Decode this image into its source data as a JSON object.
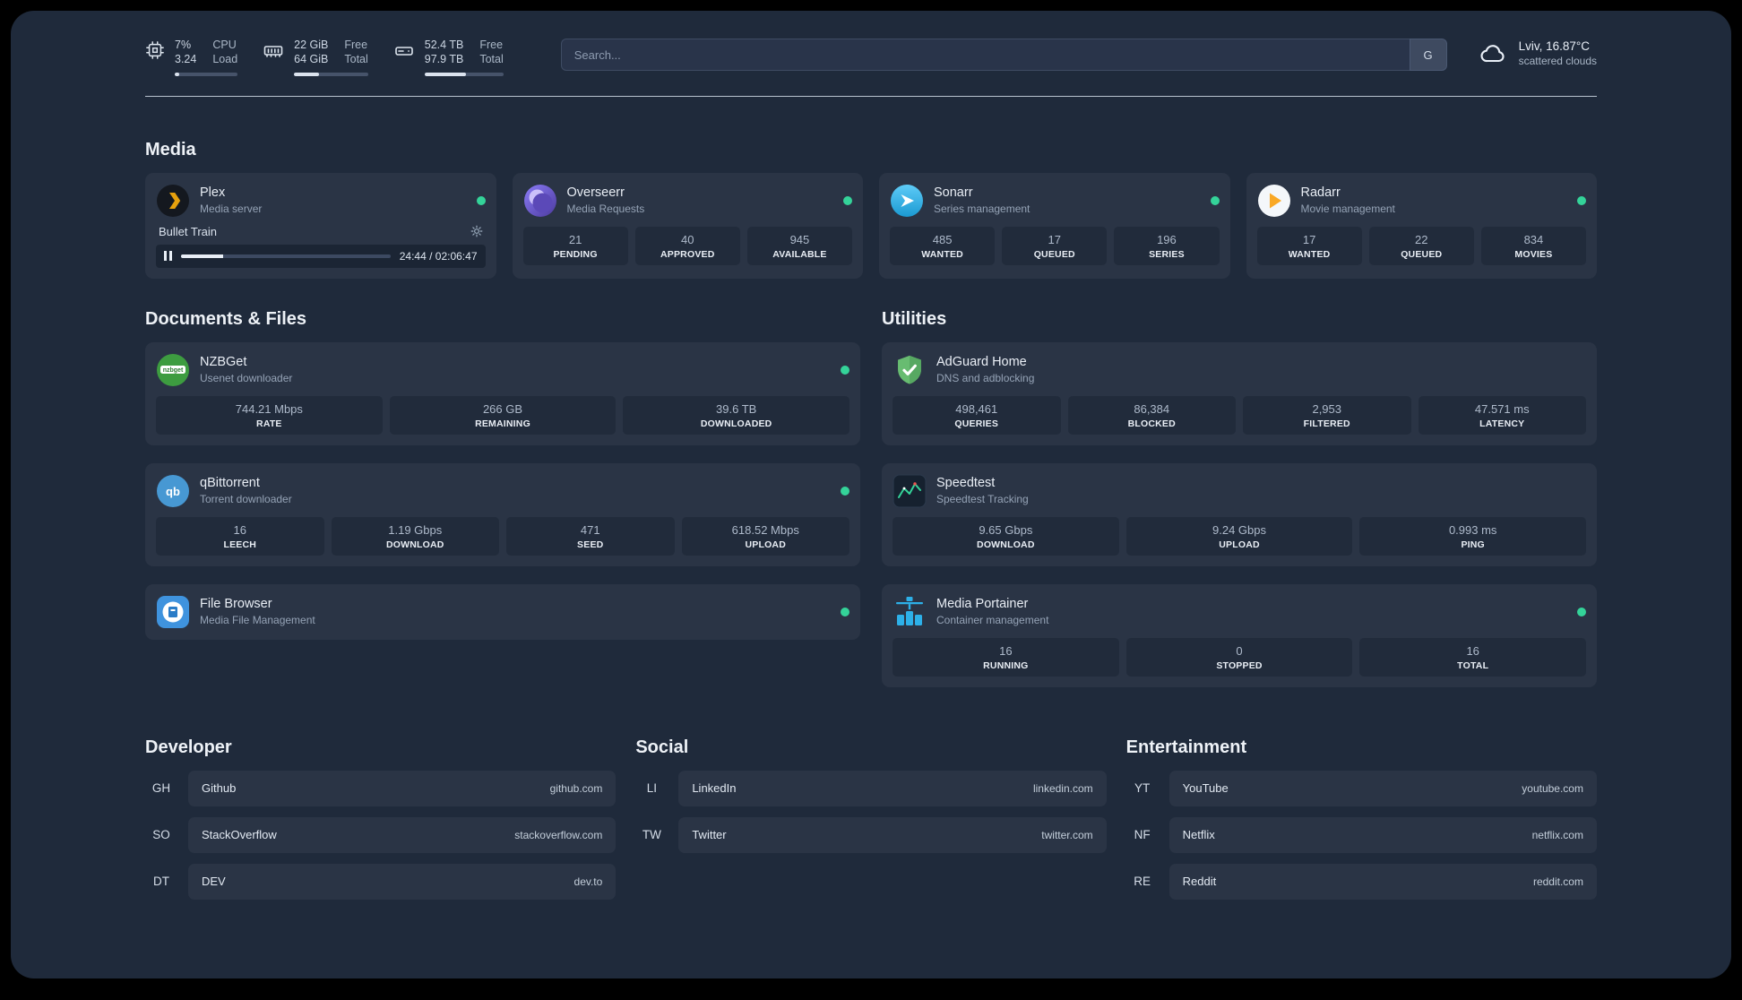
{
  "theme": {
    "status_green": "#34d399",
    "accent_plex": "#e5a00d",
    "accent_sonarr": "#35c5f4",
    "accent_radarr": "#f9a825",
    "accent_nzbget": "#3d9c40",
    "accent_qbittorrent": "#4798d3",
    "accent_adguard": "#68bc71",
    "accent_portainer": "#2db0e8"
  },
  "topbar": {
    "cpu": {
      "icon": "cpu-chip-icon",
      "value_top": "7%",
      "value_bottom": "3.24",
      "label_top": "CPU",
      "label_bottom": "Load",
      "percent": 7
    },
    "memory": {
      "icon": "ram-stick-icon",
      "value_top": "22 GiB",
      "value_bottom": "64 GiB",
      "label_top": "Free",
      "label_bottom": "Total",
      "percent": 34
    },
    "disk": {
      "icon": "hard-drive-icon",
      "value_top": "52.4 TB",
      "value_bottom": "97.9 TB",
      "label_top": "Free",
      "label_bottom": "Total",
      "percent": 53
    },
    "search": {
      "placeholder": "Search...",
      "button_label": "G"
    },
    "weather": {
      "icon": "cloud-icon",
      "location": "Lviv, 16.87°C",
      "condition": "scattered clouds"
    }
  },
  "sections": {
    "media": {
      "title": "Media",
      "plex": {
        "name": "Plex",
        "description": "Media server",
        "icon": "plex-icon",
        "now_playing": {
          "track": "Bullet Train",
          "time": "24:44 / 02:06:47",
          "progress": 20
        }
      },
      "overseerr": {
        "name": "Overseerr",
        "description": "Media Requests",
        "icon": "overseerr-icon",
        "stats": [
          {
            "value": "21",
            "label": "PENDING"
          },
          {
            "value": "40",
            "label": "APPROVED"
          },
          {
            "value": "945",
            "label": "AVAILABLE"
          }
        ]
      },
      "sonarr": {
        "name": "Sonarr",
        "description": "Series management",
        "icon": "sonarr-icon",
        "stats": [
          {
            "value": "485",
            "label": "WANTED"
          },
          {
            "value": "17",
            "label": "QUEUED"
          },
          {
            "value": "196",
            "label": "SERIES"
          }
        ]
      },
      "radarr": {
        "name": "Radarr",
        "description": "Movie management",
        "icon": "radarr-icon",
        "stats": [
          {
            "value": "17",
            "label": "WANTED"
          },
          {
            "value": "22",
            "label": "QUEUED"
          },
          {
            "value": "834",
            "label": "MOVIES"
          }
        ]
      }
    },
    "documents": {
      "title": "Documents & Files",
      "nzbget": {
        "name": "NZBGet",
        "description": "Usenet downloader",
        "icon": "nzbget-icon",
        "icon_text": "nzbget",
        "stats": [
          {
            "value": "744.21 Mbps",
            "label": "RATE"
          },
          {
            "value": "266 GB",
            "label": "REMAINING"
          },
          {
            "value": "39.6 TB",
            "label": "DOWNLOADED"
          }
        ]
      },
      "qbittorrent": {
        "name": "qBittorrent",
        "description": "Torrent downloader",
        "icon": "qbittorrent-icon",
        "icon_text": "qb",
        "stats": [
          {
            "value": "16",
            "label": "LEECH"
          },
          {
            "value": "1.19 Gbps",
            "label": "DOWNLOAD"
          },
          {
            "value": "471",
            "label": "SEED"
          },
          {
            "value": "618.52 Mbps",
            "label": "UPLOAD"
          }
        ]
      },
      "filebrowser": {
        "name": "File Browser",
        "description": "Media File Management",
        "icon": "filebrowser-icon"
      }
    },
    "utilities": {
      "title": "Utilities",
      "adguard": {
        "name": "AdGuard Home",
        "description": "DNS and adblocking",
        "icon": "adguard-shield-icon",
        "stats": [
          {
            "value": "498,461",
            "label": "QUERIES"
          },
          {
            "value": "86,384",
            "label": "BLOCKED"
          },
          {
            "value": "2,953",
            "label": "FILTERED"
          },
          {
            "value": "47.571 ms",
            "label": "LATENCY"
          }
        ]
      },
      "speedtest": {
        "name": "Speedtest",
        "description": "Speedtest Tracking",
        "icon": "speedtest-graph-icon",
        "stats": [
          {
            "value": "9.65 Gbps",
            "label": "DOWNLOAD"
          },
          {
            "value": "9.24 Gbps",
            "label": "UPLOAD"
          },
          {
            "value": "0.993 ms",
            "label": "PING"
          }
        ]
      },
      "portainer": {
        "name": "Media Portainer",
        "description": "Container management",
        "icon": "portainer-crane-icon",
        "stats": [
          {
            "value": "16",
            "label": "RUNNING"
          },
          {
            "value": "0",
            "label": "STOPPED"
          },
          {
            "value": "16",
            "label": "TOTAL"
          }
        ]
      }
    },
    "bookmarks": {
      "developer": {
        "title": "Developer",
        "items": [
          {
            "abbr": "GH",
            "name": "Github",
            "url": "github.com"
          },
          {
            "abbr": "SO",
            "name": "StackOverflow",
            "url": "stackoverflow.com"
          },
          {
            "abbr": "DT",
            "name": "DEV",
            "url": "dev.to"
          }
        ]
      },
      "social": {
        "title": "Social",
        "items": [
          {
            "abbr": "LI",
            "name": "LinkedIn",
            "url": "linkedin.com"
          },
          {
            "abbr": "TW",
            "name": "Twitter",
            "url": "twitter.com"
          }
        ]
      },
      "entertainment": {
        "title": "Entertainment",
        "items": [
          {
            "abbr": "YT",
            "name": "YouTube",
            "url": "youtube.com"
          },
          {
            "abbr": "NF",
            "name": "Netflix",
            "url": "netflix.com"
          },
          {
            "abbr": "RE",
            "name": "Reddit",
            "url": "reddit.com"
          }
        ]
      }
    }
  }
}
